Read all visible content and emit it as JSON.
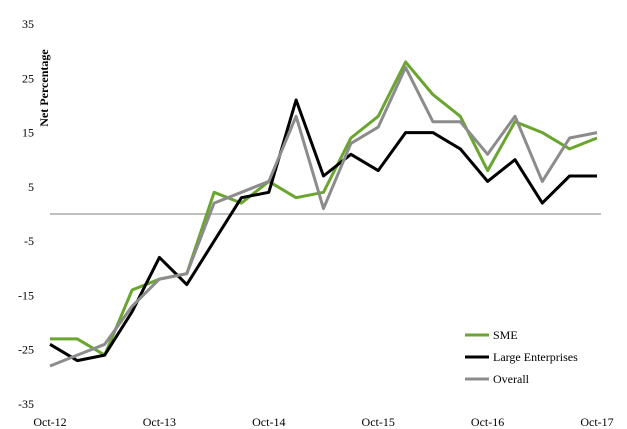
{
  "chart_data": {
    "type": "line",
    "ylabel": "Net Percentage",
    "xlabel": "",
    "title": "",
    "ylim": [
      -35,
      35
    ],
    "yticks": [
      35,
      25,
      15,
      5,
      -5,
      -15,
      -25,
      -35
    ],
    "x_tick_labels": [
      "Oct-12",
      "Oct-13",
      "Oct-14",
      "Oct-15",
      "Oct-16",
      "Oct-17"
    ],
    "x_points": 21,
    "x_tick_indices": [
      0,
      4,
      8,
      12,
      16,
      20
    ],
    "zero_line": true,
    "grid": false,
    "legend_position": "bottom-right",
    "series": [
      {
        "name": "SME",
        "color": "#6aa52f",
        "values": [
          -23,
          -23,
          -26,
          -14,
          -12,
          -11,
          4,
          2,
          6,
          3,
          4,
          14,
          18,
          28,
          22,
          18,
          8,
          17,
          15,
          12,
          14
        ]
      },
      {
        "name": "Large Enterprises",
        "color": "#000000",
        "values": [
          -24,
          -27,
          -26,
          -18,
          -8,
          -13,
          -5,
          3,
          4,
          21,
          7,
          11,
          8,
          15,
          15,
          12,
          6,
          10,
          2,
          7,
          7
        ]
      },
      {
        "name": "Overall",
        "color": "#8c8c8c",
        "values": [
          -28,
          -26,
          -24,
          -17,
          -12,
          -11,
          2,
          4,
          6,
          18,
          1,
          13,
          16,
          27,
          17,
          17,
          11,
          18,
          6,
          14,
          15
        ]
      }
    ]
  }
}
